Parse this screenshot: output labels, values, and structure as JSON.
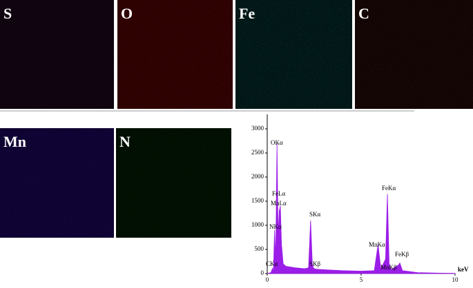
{
  "maps": [
    {
      "label": "S"
    },
    {
      "label": "O"
    },
    {
      "label": "Fe"
    },
    {
      "label": "C"
    },
    {
      "label": "Mn"
    },
    {
      "label": "N"
    }
  ],
  "chart_data": {
    "type": "area",
    "x_label": "keV",
    "color": "#9b1de8",
    "x": [
      0,
      0.2,
      0.28,
      0.33,
      0.39,
      0.45,
      0.52,
      0.58,
      0.64,
      0.7,
      0.76,
      0.85,
      1.0,
      1.5,
      2.0,
      2.2,
      2.31,
      2.4,
      2.46,
      2.6,
      3.0,
      4.0,
      5.0,
      5.7,
      5.9,
      6.05,
      6.3,
      6.4,
      6.49,
      6.6,
      7.0,
      7.06,
      7.2,
      8,
      9,
      10
    ],
    "values": [
      0,
      20,
      110,
      40,
      900,
      300,
      2700,
      800,
      1300,
      1400,
      600,
      200,
      150,
      120,
      100,
      120,
      1100,
      200,
      110,
      90,
      80,
      60,
      50,
      60,
      600,
      100,
      300,
      1650,
      200,
      80,
      180,
      220,
      60,
      20,
      10,
      5
    ],
    "xlim": [
      0,
      10
    ],
    "ylim": [
      0,
      3300
    ],
    "xticks": [
      0,
      5,
      10
    ],
    "yticks": [
      0,
      500,
      1000,
      1500,
      2000,
      2500,
      3000
    ],
    "annotations": [
      "OKα",
      "FeLα",
      "MnLα",
      "NKα",
      "CKα",
      "SKα",
      "SKβ",
      "MnKα",
      "MnKβ",
      "FeKα",
      "FeKβ"
    ]
  }
}
